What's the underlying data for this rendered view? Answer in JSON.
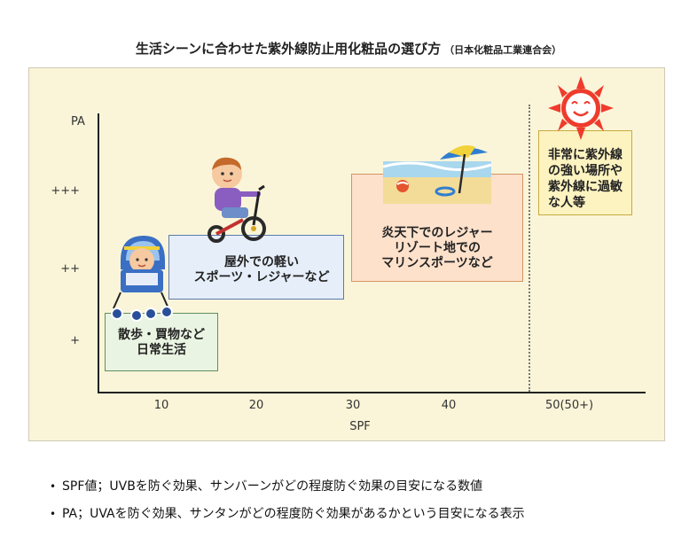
{
  "title": {
    "main": "生活シーンに合わせた紫外線防止用化粧品の選び方",
    "source": "（日本化粧品工業連合会）"
  },
  "axes": {
    "y_title": "PA",
    "y_ticks": [
      "+++",
      "++",
      "+"
    ],
    "x_ticks": [
      "10",
      "20",
      "30",
      "40",
      "50(50+)"
    ],
    "x_title": "SPF"
  },
  "scenes": [
    {
      "lines": [
        "散歩・買物など",
        "日常生活"
      ],
      "color": "#eaf4e2"
    },
    {
      "lines": [
        "屋外での軽い",
        "スポーツ・レジャーなど"
      ],
      "color": "#e6eef9"
    },
    {
      "lines": [
        "炎天下でのレジャー",
        "リゾート地での",
        "マリンスポーツなど"
      ],
      "color": "#fde1cb"
    },
    {
      "lines": [
        "非常に紫外線",
        "の強い場所や",
        "紫外線に過敏",
        "な人等"
      ],
      "color": "#fdf3c0"
    }
  ],
  "icons": {
    "stroller": "stroller-baby-icon",
    "tricycle": "child-tricycle-icon",
    "beach": "beach-umbrella-icon",
    "sun": "smiling-sun-icon"
  },
  "notes": [
    "SPF値；UVBを防ぐ効果、サンバーンがどの程度防ぐ効果の目安になる数値",
    "PA；UVAを防ぐ効果、サンタンがどの程度防ぐ効果があるかという目安になる表示"
  ]
}
